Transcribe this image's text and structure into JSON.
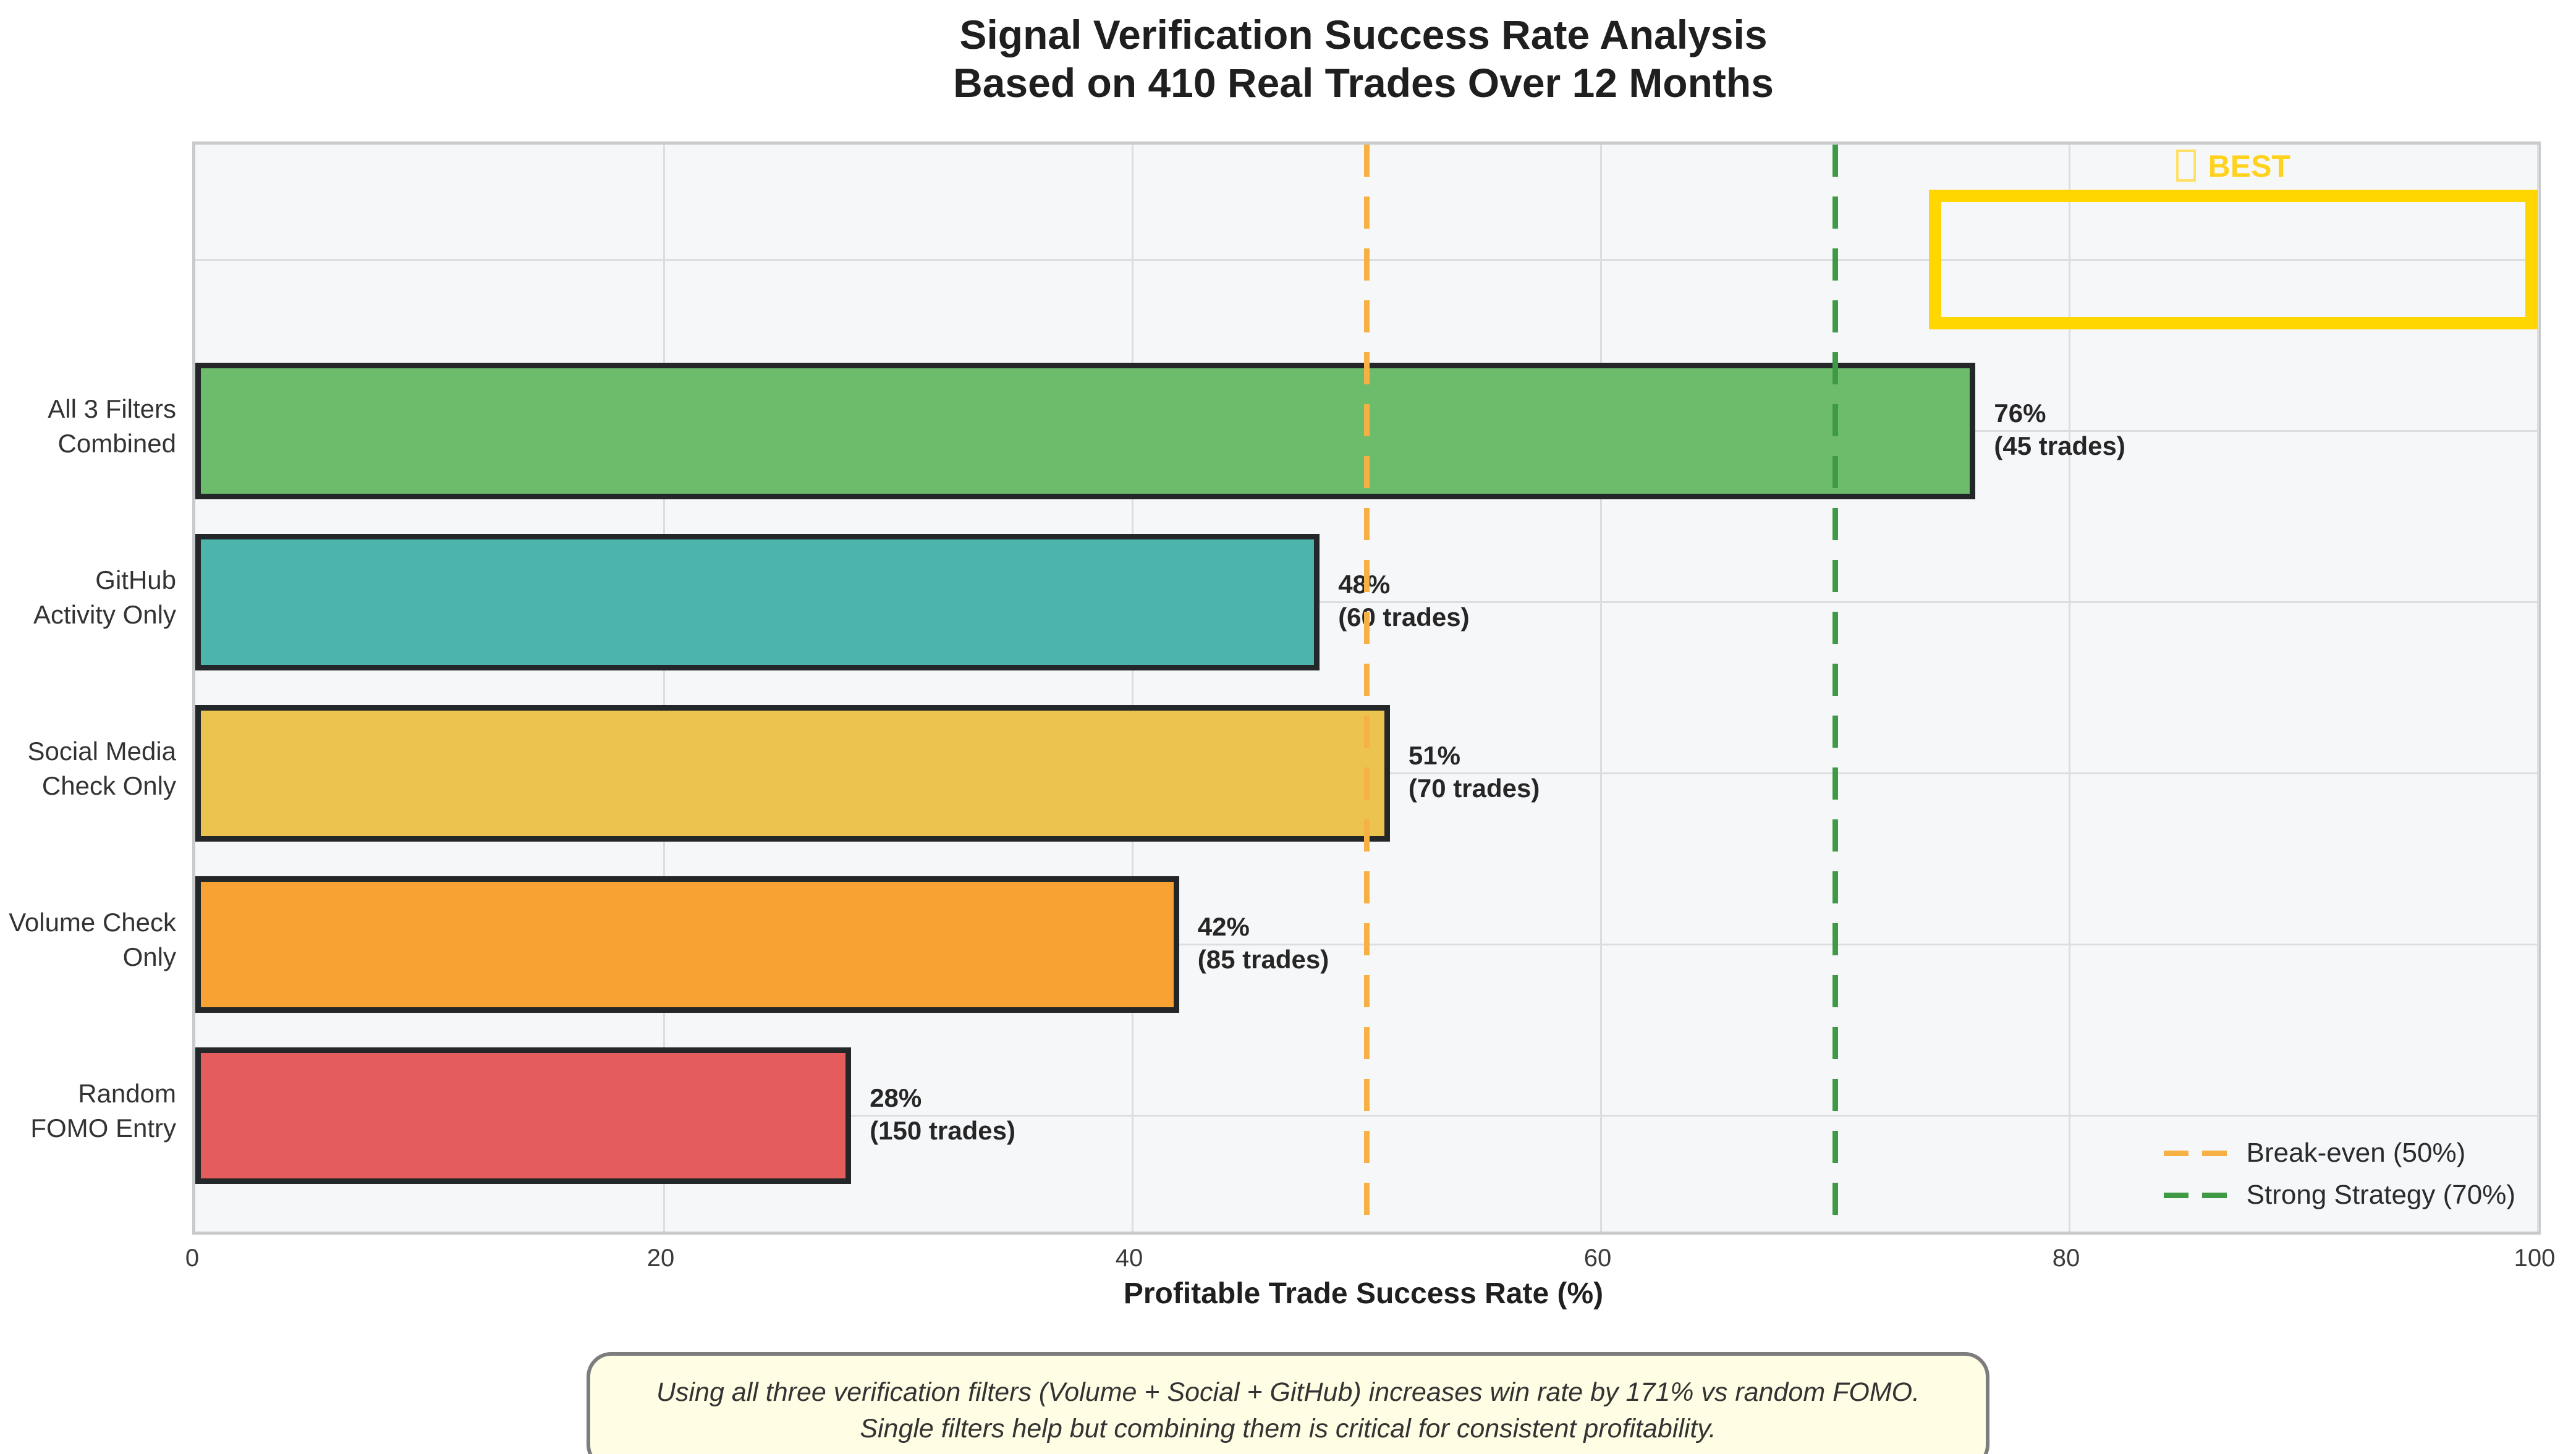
{
  "title": {
    "line1": "Signal Verification Success Rate Analysis",
    "line2": "Based on 410 Real Trades Over 12 Months"
  },
  "chart_data": {
    "type": "bar",
    "orientation": "horizontal",
    "title": "Signal Verification Success Rate Analysis",
    "subtitle": "Based on 410 Real Trades Over 12 Months",
    "xlabel": "Profitable Trade Success Rate (%)",
    "xlim": [
      0,
      100
    ],
    "xticks": [
      0,
      20,
      40,
      60,
      80,
      100
    ],
    "grid": true,
    "plot_bg": "#F6F7F9",
    "bars": [
      {
        "label": "All 3 Filters\nCombined",
        "value": 76,
        "trades": 45,
        "value_label": "76%\n(45 trades)",
        "color": "#6CBC6C"
      },
      {
        "label": "GitHub\nActivity Only",
        "value": 48,
        "trades": 60,
        "value_label": "48%\n(60 trades)",
        "color": "#4DB4AB"
      },
      {
        "label": "Social Media\nCheck Only",
        "value": 51,
        "trades": 70,
        "value_label": "51%\n(70 trades)",
        "color": "#EDC350"
      },
      {
        "label": "Volume Check\nOnly",
        "value": 42,
        "trades": 85,
        "value_label": "42%\n(85 trades)",
        "color": "#F8A234"
      },
      {
        "label": "Random\nFOMO Entry",
        "value": 28,
        "trades": 150,
        "value_label": "28%\n(150 trades)",
        "color": "#E55C5C"
      }
    ],
    "reference_lines": [
      {
        "label": "Break-even (50%)",
        "value": 50,
        "color": "#F7B043"
      },
      {
        "label": "Strong Strategy (70%)",
        "value": 70,
        "color": "#3E9A44"
      }
    ],
    "legend_position": "lower right",
    "best_badge": {
      "label": "BEST",
      "icon": "trophy-icon",
      "x_from": 74,
      "x_to": 100,
      "color": "#FFD600"
    }
  },
  "annotation": {
    "text": "Using all three verification filters (Volume + Social + GitHub) increases win rate by 171% vs random FOMO.\nSingle filters help but combining them is critical for consistent profitability."
  },
  "colors": {
    "figure_bg": "#FFFFFF",
    "plot_bg": "#F6F7F9",
    "grid": "#DBDDDF",
    "frame": "#C8CACC",
    "bar_edge": "#23272A",
    "gold": "#FFD600",
    "annotation_bg": "#FFFDE4",
    "annotation_border": "#7D7D7D"
  }
}
